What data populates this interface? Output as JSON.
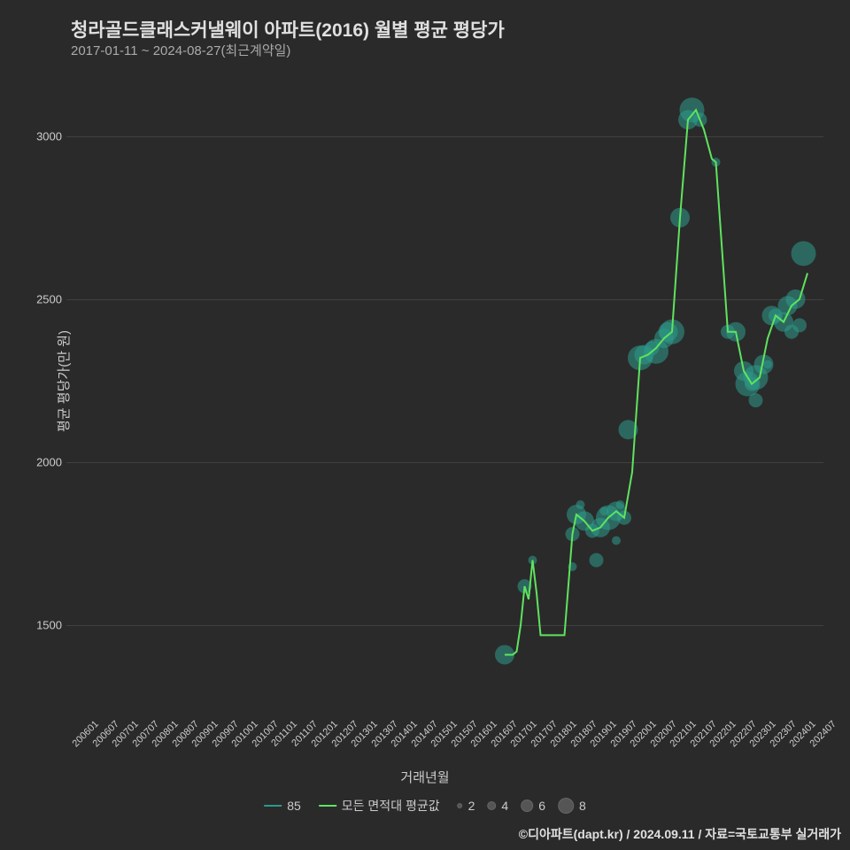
{
  "title": "청라골드클래스커낼웨이 아파트(2016) 월별 평균 평당가",
  "subtitle": "2017-01-11 ~ 2024-08-27(최근계약일)",
  "y_axis_label": "평균 평당가(만 원)",
  "x_axis_label": "거래년월",
  "attribution": "©디아파트(dapt.kr) / 2024.09.11 / 자료=국토교통부 실거래가",
  "background_color": "#2a2a2a",
  "grid_color": "#404040",
  "text_color": "#cccccc",
  "line_color": "#5fe35f",
  "scatter_color": "#2d9a8a",
  "plot": {
    "x_domain": [
      2006.0,
      2025.0
    ],
    "y_domain": [
      1300,
      3200
    ],
    "y_ticks": [
      1500,
      2000,
      2500,
      3000
    ],
    "x_ticks": [
      "200601",
      "200607",
      "200701",
      "200707",
      "200801",
      "200807",
      "200901",
      "200907",
      "201001",
      "201007",
      "201101",
      "201107",
      "201201",
      "201207",
      "201301",
      "201307",
      "201401",
      "201407",
      "201501",
      "201507",
      "201601",
      "201607",
      "201701",
      "201707",
      "201801",
      "201807",
      "201901",
      "201907",
      "202001",
      "202007",
      "202101",
      "202107",
      "202201",
      "202207",
      "202301",
      "202307",
      "202401",
      "202407"
    ],
    "x_tick_positions": [
      2006.0,
      2006.5,
      2007.0,
      2007.5,
      2008.0,
      2008.5,
      2009.0,
      2009.5,
      2010.0,
      2010.5,
      2011.0,
      2011.5,
      2012.0,
      2012.5,
      2013.0,
      2013.5,
      2014.0,
      2014.5,
      2015.0,
      2015.5,
      2016.0,
      2016.5,
      2017.0,
      2017.5,
      2018.0,
      2018.5,
      2019.0,
      2019.5,
      2020.0,
      2020.5,
      2021.0,
      2021.5,
      2022.0,
      2022.5,
      2023.0,
      2023.5,
      2024.0,
      2024.5
    ]
  },
  "line_series": [
    {
      "x": 2017.0,
      "y": 1410
    },
    {
      "x": 2017.1,
      "y": 1410
    },
    {
      "x": 2017.2,
      "y": 1410
    },
    {
      "x": 2017.3,
      "y": 1420
    },
    {
      "x": 2017.4,
      "y": 1500
    },
    {
      "x": 2017.5,
      "y": 1620
    },
    {
      "x": 2017.6,
      "y": 1580
    },
    {
      "x": 2017.7,
      "y": 1700
    },
    {
      "x": 2017.8,
      "y": 1600
    },
    {
      "x": 2017.9,
      "y": 1470
    },
    {
      "x": 2018.0,
      "y": 1470
    },
    {
      "x": 2018.3,
      "y": 1470
    },
    {
      "x": 2018.5,
      "y": 1470
    },
    {
      "x": 2018.7,
      "y": 1780
    },
    {
      "x": 2018.8,
      "y": 1840
    },
    {
      "x": 2019.0,
      "y": 1820
    },
    {
      "x": 2019.2,
      "y": 1790
    },
    {
      "x": 2019.4,
      "y": 1800
    },
    {
      "x": 2019.6,
      "y": 1830
    },
    {
      "x": 2019.8,
      "y": 1850
    },
    {
      "x": 2020.0,
      "y": 1830
    },
    {
      "x": 2020.2,
      "y": 1970
    },
    {
      "x": 2020.4,
      "y": 2320
    },
    {
      "x": 2020.6,
      "y": 2330
    },
    {
      "x": 2020.8,
      "y": 2350
    },
    {
      "x": 2021.0,
      "y": 2380
    },
    {
      "x": 2021.2,
      "y": 2400
    },
    {
      "x": 2021.4,
      "y": 2750
    },
    {
      "x": 2021.6,
      "y": 3050
    },
    {
      "x": 2021.8,
      "y": 3080
    },
    {
      "x": 2022.0,
      "y": 3020
    },
    {
      "x": 2022.2,
      "y": 2930
    },
    {
      "x": 2022.3,
      "y": 2920
    },
    {
      "x": 2022.6,
      "y": 2400
    },
    {
      "x": 2022.8,
      "y": 2400
    },
    {
      "x": 2023.0,
      "y": 2280
    },
    {
      "x": 2023.2,
      "y": 2240
    },
    {
      "x": 2023.4,
      "y": 2260
    },
    {
      "x": 2023.6,
      "y": 2380
    },
    {
      "x": 2023.8,
      "y": 2450
    },
    {
      "x": 2024.0,
      "y": 2430
    },
    {
      "x": 2024.2,
      "y": 2480
    },
    {
      "x": 2024.4,
      "y": 2500
    },
    {
      "x": 2024.6,
      "y": 2580
    }
  ],
  "scatter_series": [
    {
      "x": 2017.0,
      "y": 1410,
      "s": 6
    },
    {
      "x": 2017.5,
      "y": 1620,
      "s": 4
    },
    {
      "x": 2017.7,
      "y": 1700,
      "s": 2
    },
    {
      "x": 2018.7,
      "y": 1780,
      "s": 4
    },
    {
      "x": 2018.7,
      "y": 1680,
      "s": 2
    },
    {
      "x": 2018.8,
      "y": 1840,
      "s": 6
    },
    {
      "x": 2018.9,
      "y": 1870,
      "s": 2
    },
    {
      "x": 2019.0,
      "y": 1820,
      "s": 6
    },
    {
      "x": 2019.2,
      "y": 1790,
      "s": 4
    },
    {
      "x": 2019.3,
      "y": 1700,
      "s": 4
    },
    {
      "x": 2019.4,
      "y": 1800,
      "s": 6
    },
    {
      "x": 2019.5,
      "y": 1850,
      "s": 2
    },
    {
      "x": 2019.6,
      "y": 1830,
      "s": 8
    },
    {
      "x": 2019.8,
      "y": 1850,
      "s": 6
    },
    {
      "x": 2019.8,
      "y": 1760,
      "s": 2
    },
    {
      "x": 2019.9,
      "y": 1870,
      "s": 2
    },
    {
      "x": 2020.0,
      "y": 1830,
      "s": 4
    },
    {
      "x": 2020.1,
      "y": 2100,
      "s": 6
    },
    {
      "x": 2020.4,
      "y": 2320,
      "s": 8
    },
    {
      "x": 2020.5,
      "y": 2330,
      "s": 6
    },
    {
      "x": 2020.7,
      "y": 2350,
      "s": 4
    },
    {
      "x": 2020.8,
      "y": 2340,
      "s": 8
    },
    {
      "x": 2021.0,
      "y": 2380,
      "s": 6
    },
    {
      "x": 2021.1,
      "y": 2400,
      "s": 6
    },
    {
      "x": 2021.2,
      "y": 2400,
      "s": 8
    },
    {
      "x": 2021.4,
      "y": 2750,
      "s": 6
    },
    {
      "x": 2021.6,
      "y": 3050,
      "s": 6
    },
    {
      "x": 2021.7,
      "y": 3080,
      "s": 8
    },
    {
      "x": 2021.9,
      "y": 3050,
      "s": 4
    },
    {
      "x": 2022.3,
      "y": 2920,
      "s": 2
    },
    {
      "x": 2022.6,
      "y": 2400,
      "s": 4
    },
    {
      "x": 2022.8,
      "y": 2400,
      "s": 6
    },
    {
      "x": 2023.0,
      "y": 2280,
      "s": 6
    },
    {
      "x": 2023.1,
      "y": 2240,
      "s": 8
    },
    {
      "x": 2023.2,
      "y": 2240,
      "s": 4
    },
    {
      "x": 2023.3,
      "y": 2260,
      "s": 8
    },
    {
      "x": 2023.3,
      "y": 2190,
      "s": 4
    },
    {
      "x": 2023.5,
      "y": 2300,
      "s": 6
    },
    {
      "x": 2023.6,
      "y": 2300,
      "s": 2
    },
    {
      "x": 2023.7,
      "y": 2450,
      "s": 6
    },
    {
      "x": 2023.8,
      "y": 2450,
      "s": 4
    },
    {
      "x": 2024.0,
      "y": 2430,
      "s": 6
    },
    {
      "x": 2024.1,
      "y": 2480,
      "s": 6
    },
    {
      "x": 2024.2,
      "y": 2400,
      "s": 4
    },
    {
      "x": 2024.3,
      "y": 2500,
      "s": 6
    },
    {
      "x": 2024.4,
      "y": 2420,
      "s": 4
    },
    {
      "x": 2024.5,
      "y": 2640,
      "s": 8
    }
  ],
  "legend": {
    "series1_label": "85",
    "series2_label": "모든 면적대 평균값",
    "size_labels": [
      "2",
      "4",
      "6",
      "8"
    ],
    "size_values": [
      6,
      10,
      14,
      18
    ]
  }
}
